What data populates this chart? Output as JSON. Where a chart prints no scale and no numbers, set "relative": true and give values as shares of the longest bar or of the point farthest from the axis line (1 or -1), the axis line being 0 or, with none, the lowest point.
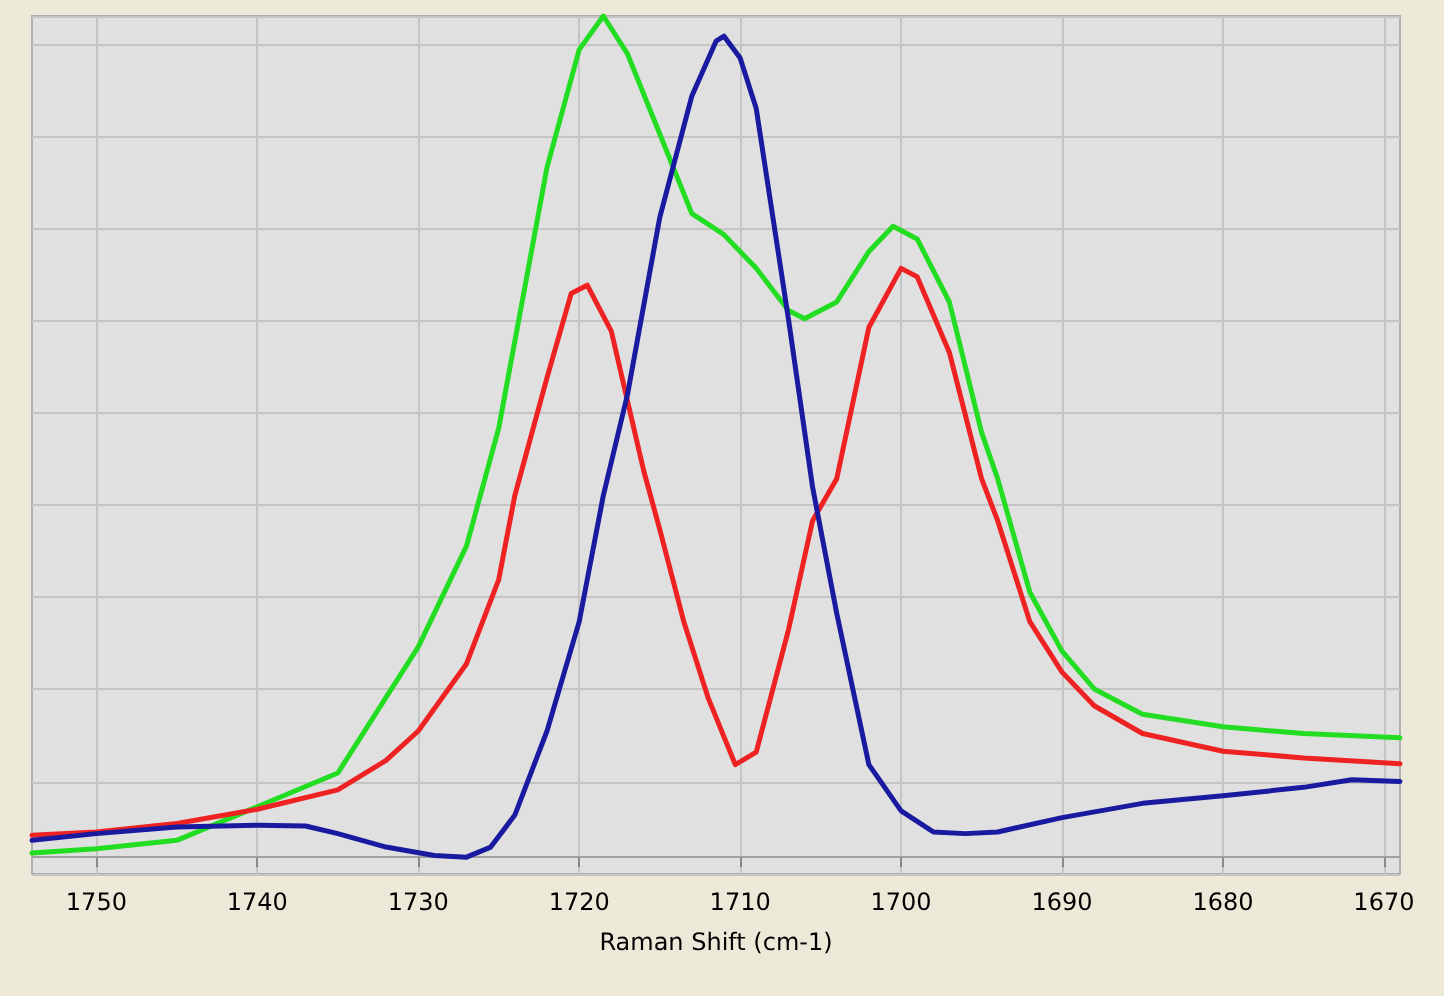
{
  "chart_data": {
    "type": "line",
    "relative": true,
    "xlabel": "Raman Shift (cm-1)",
    "xlim": [
      1754,
      1669
    ],
    "xticks": [
      1750,
      1740,
      1730,
      1720,
      1710,
      1700,
      1690,
      1680,
      1670
    ],
    "grid": true,
    "marker": "none",
    "line_style": "solid",
    "series": [
      {
        "color": "#22dd22",
        "x": [
          1754,
          1750,
          1745,
          1740,
          1735,
          1730,
          1727,
          1725,
          1722,
          1720,
          1718.5,
          1717,
          1715,
          1713,
          1711,
          1709,
          1707,
          1706,
          1704,
          1702,
          1700.5,
          1699,
          1697,
          1695,
          1694,
          1692,
          1690,
          1688,
          1685,
          1680,
          1675,
          1669
        ],
        "values": [
          0.005,
          0.01,
          0.02,
          0.06,
          0.1,
          0.25,
          0.37,
          0.51,
          0.82,
          0.96,
          1,
          0.955,
          0.86,
          0.765,
          0.74,
          0.7,
          0.65,
          0.64,
          0.66,
          0.72,
          0.75,
          0.735,
          0.66,
          0.505,
          0.45,
          0.315,
          0.245,
          0.2,
          0.17,
          0.155,
          0.147,
          0.142
        ]
      },
      {
        "color": "#ee2222",
        "x": [
          1754,
          1750,
          1745,
          1740,
          1735,
          1732,
          1730,
          1727,
          1725,
          1724,
          1722,
          1720.5,
          1719.5,
          1718,
          1716,
          1715,
          1713.5,
          1712,
          1710.3,
          1709,
          1707,
          1705.5,
          1704,
          1702,
          1700,
          1699,
          1697,
          1695,
          1694,
          1692,
          1690,
          1688,
          1685,
          1680,
          1675,
          1669
        ],
        "values": [
          0.026,
          0.03,
          0.04,
          0.057,
          0.08,
          0.115,
          0.15,
          0.23,
          0.33,
          0.43,
          0.57,
          0.67,
          0.68,
          0.625,
          0.46,
          0.39,
          0.28,
          0.19,
          0.11,
          0.125,
          0.27,
          0.4,
          0.45,
          0.63,
          0.7,
          0.69,
          0.6,
          0.45,
          0.4,
          0.28,
          0.22,
          0.18,
          0.147,
          0.126,
          0.118,
          0.111
        ]
      },
      {
        "color": "#1a1aa0",
        "x": [
          1754,
          1750,
          1745,
          1740,
          1737,
          1735,
          1732,
          1729,
          1727,
          1725.5,
          1724,
          1722,
          1720,
          1718.5,
          1717,
          1715,
          1713,
          1711.5,
          1711,
          1710,
          1709,
          1707,
          1705.5,
          1704,
          1702,
          1700,
          1698,
          1696,
          1694,
          1690,
          1685,
          1680,
          1675,
          1672,
          1669
        ],
        "values": [
          0.02,
          0.028,
          0.036,
          0.038,
          0.037,
          0.028,
          0.012,
          0.002,
          0,
          0.012,
          0.05,
          0.15,
          0.28,
          0.43,
          0.55,
          0.76,
          0.905,
          0.97,
          0.976,
          0.95,
          0.89,
          0.64,
          0.44,
          0.29,
          0.11,
          0.055,
          0.03,
          0.028,
          0.03,
          0.047,
          0.064,
          0.073,
          0.083,
          0.092,
          0.09
        ]
      }
    ]
  }
}
